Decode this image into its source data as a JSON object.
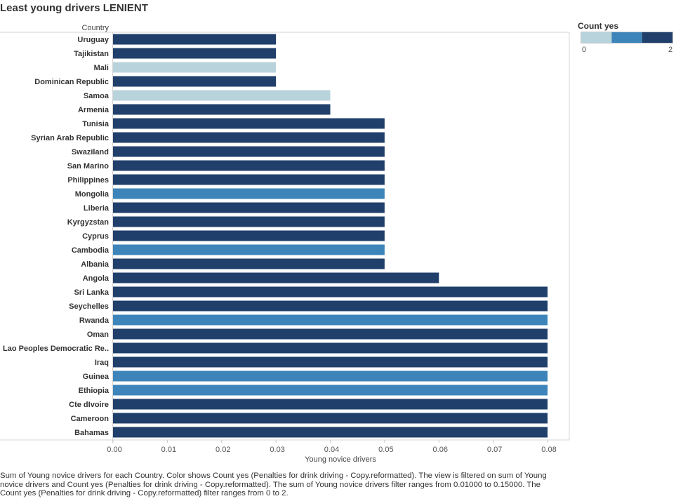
{
  "chart_data": {
    "type": "bar",
    "orientation": "horizontal",
    "title": "Least young drivers LENIENT",
    "row_header": "Country",
    "xlabel": "Young novice drivers",
    "xlim": [
      0,
      0.08
    ],
    "xticks": [
      "0.00",
      "0.01",
      "0.02",
      "0.03",
      "0.04",
      "0.05",
      "0.06",
      "0.07",
      "0.08"
    ],
    "grid": false,
    "categories": [
      "Uruguay",
      "Tajikistan",
      "Mali",
      "Dominican Republic",
      "Samoa",
      "Armenia",
      "Tunisia",
      "Syrian Arab Republic",
      "Swaziland",
      "San Marino",
      "Philippines",
      "Mongolia",
      "Liberia",
      "Kyrgyzstan",
      "Cyprus",
      "Cambodia",
      "Albania",
      "Angola",
      "Sri Lanka",
      "Seychelles",
      "Rwanda",
      "Oman",
      "Lao Peoples Democratic Re..",
      "Iraq",
      "Guinea",
      "Ethiopia",
      "Cte dIvoire",
      "Cameroon",
      "Bahamas"
    ],
    "values": [
      0.03,
      0.03,
      0.03,
      0.03,
      0.04,
      0.04,
      0.05,
      0.05,
      0.05,
      0.05,
      0.05,
      0.05,
      0.05,
      0.05,
      0.05,
      0.05,
      0.05,
      0.06,
      0.08,
      0.08,
      0.08,
      0.08,
      0.08,
      0.08,
      0.08,
      0.08,
      0.08,
      0.08,
      0.08
    ],
    "count_yes": [
      2,
      2,
      0,
      2,
      0,
      2,
      2,
      2,
      2,
      2,
      2,
      1,
      2,
      2,
      2,
      1,
      2,
      2,
      2,
      2,
      1,
      2,
      2,
      2,
      1,
      1,
      2,
      2,
      2
    ],
    "legend": {
      "title": "Count yes",
      "placement": "top-right",
      "min_label": "0",
      "max_label": "2",
      "colors": [
        "#b9d3dc",
        "#3c84b9",
        "#203f6b"
      ]
    }
  },
  "caption": "Sum of Young novice drivers for each Country.  Color shows Count yes (Penalties for drink driving - Copy.reformatted). The view is filtered on sum of Young novice drivers and Count yes (Penalties for drink driving - Copy.reformatted). The sum of Young novice drivers filter ranges from 0.01000 to 0.15000. The Count yes (Penalties for drink driving - Copy.reformatted) filter ranges from 0 to 2."
}
